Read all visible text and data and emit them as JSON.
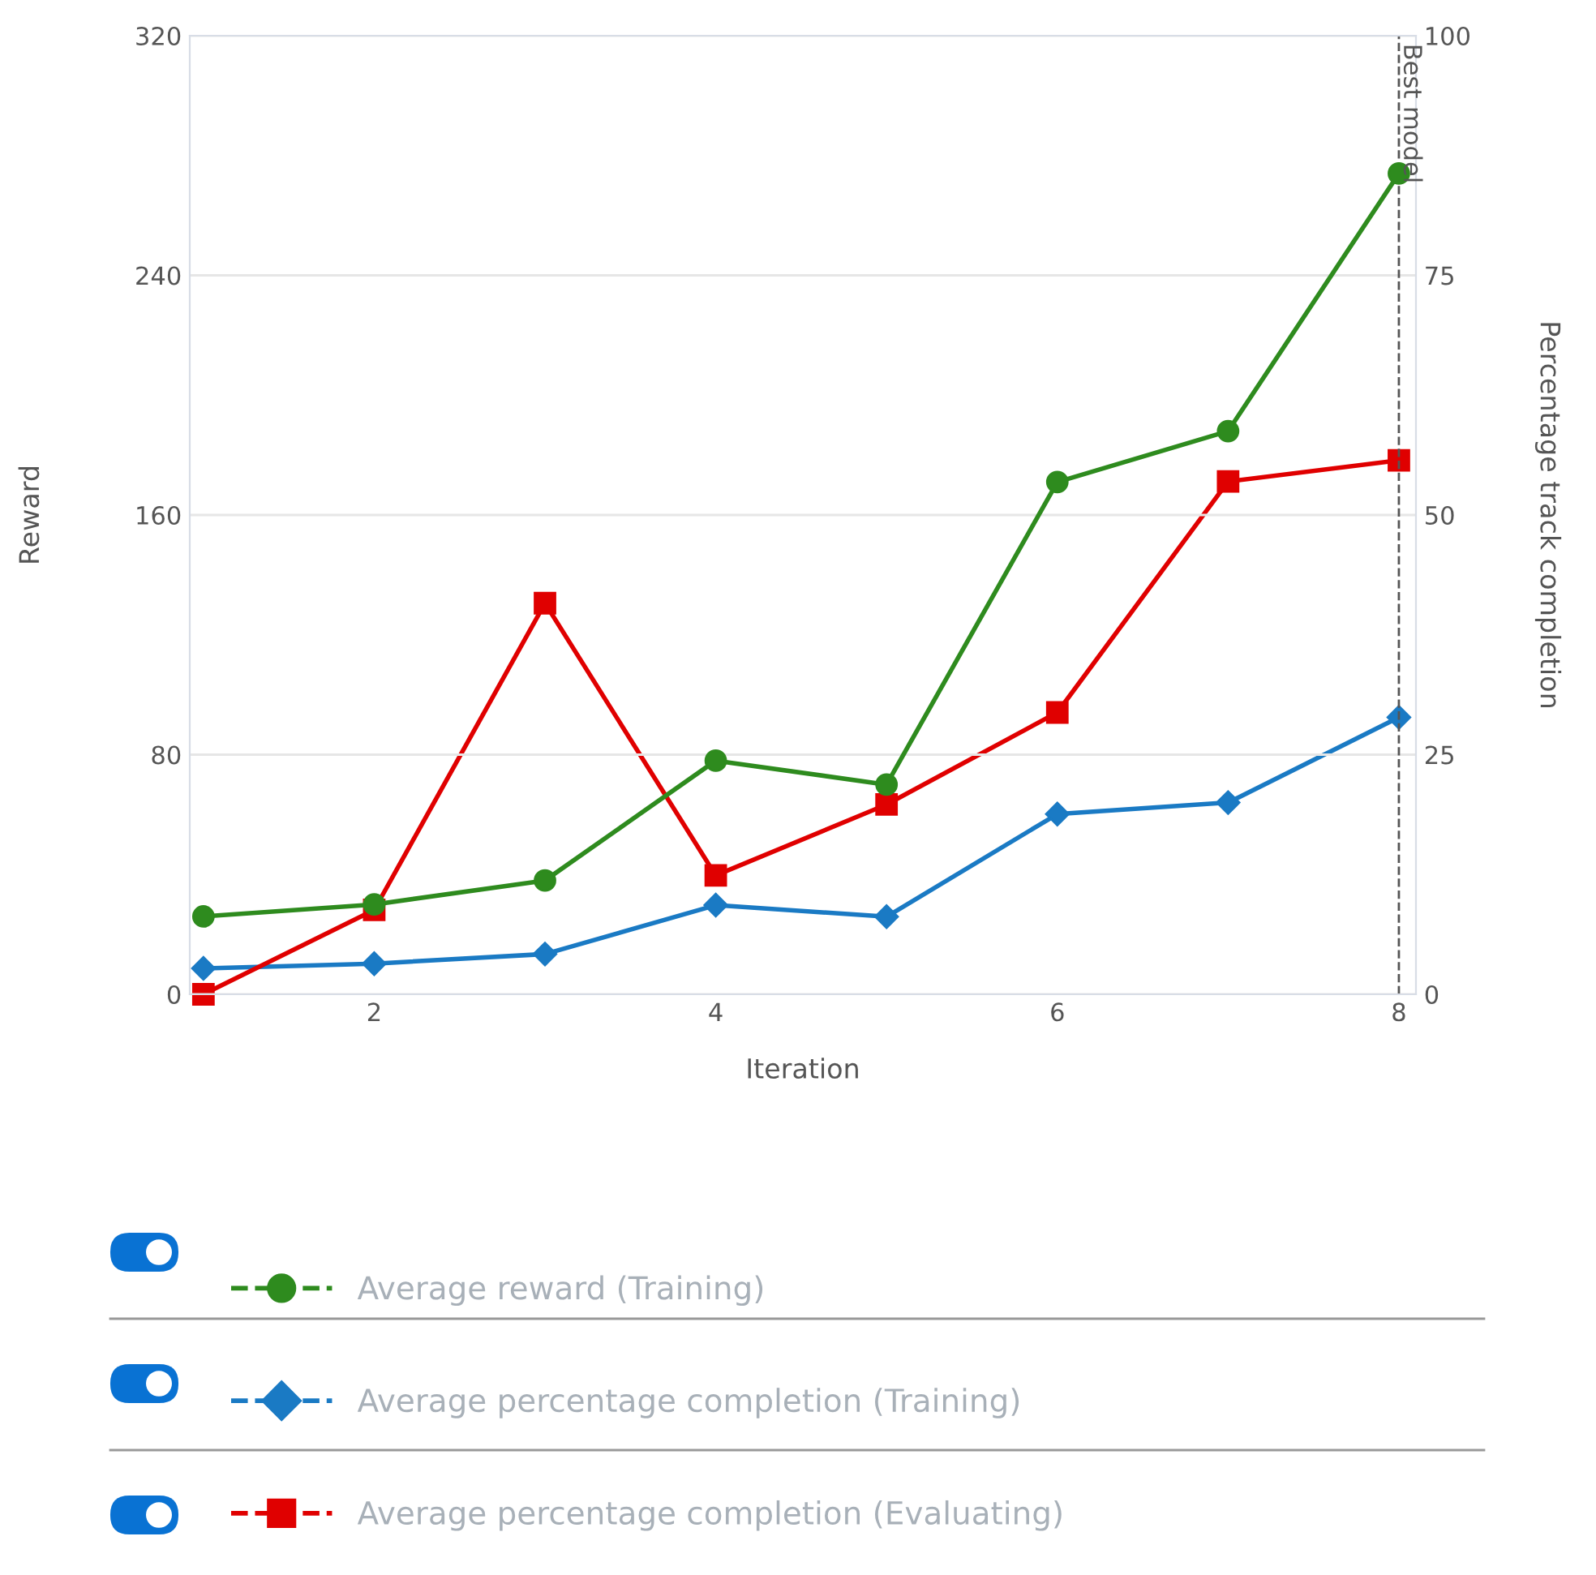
{
  "chart_data": {
    "type": "line",
    "xlabel": "Iteration",
    "ylabel": "Reward",
    "y2label": "Percentage track completion",
    "x": [
      1,
      2,
      3,
      4,
      5,
      6,
      7,
      8
    ],
    "xlim": [
      0.92,
      8.1
    ],
    "xticks": [
      2,
      4,
      6,
      8
    ],
    "ylim": [
      0,
      320
    ],
    "yticks": [
      0,
      80,
      160,
      240,
      320
    ],
    "y2lim": [
      0,
      100
    ],
    "y2ticks": [
      0,
      25,
      50,
      75,
      100
    ],
    "grid": "y",
    "legend": "bottom",
    "line_style": "solid",
    "series": [
      {
        "name": "Average reward (Training)",
        "color": "#2e8b1e",
        "marker": "circle",
        "values": [
          26,
          30,
          38,
          78,
          70,
          171,
          188,
          274
        ]
      },
      {
        "name": "Average percentage completion (Training)",
        "color": "#1a7ac4",
        "marker": "diamond",
        "axis": "y2",
        "values": [
          2.7,
          3.2,
          4.2,
          9.3,
          8.1,
          18.8,
          20.0,
          28.9
        ]
      },
      {
        "name": "Average percentage completion (Evaluating)",
        "color": "#e00000",
        "marker": "square",
        "axis": "y2",
        "values": [
          0,
          8.8,
          40.8,
          12.4,
          19.8,
          29.4,
          53.5,
          55.7
        ]
      }
    ],
    "ref_lines": [
      {
        "axis": "x",
        "value": 8,
        "label": "Best model",
        "color": "#555555",
        "line_style": "dashed"
      }
    ]
  }
}
